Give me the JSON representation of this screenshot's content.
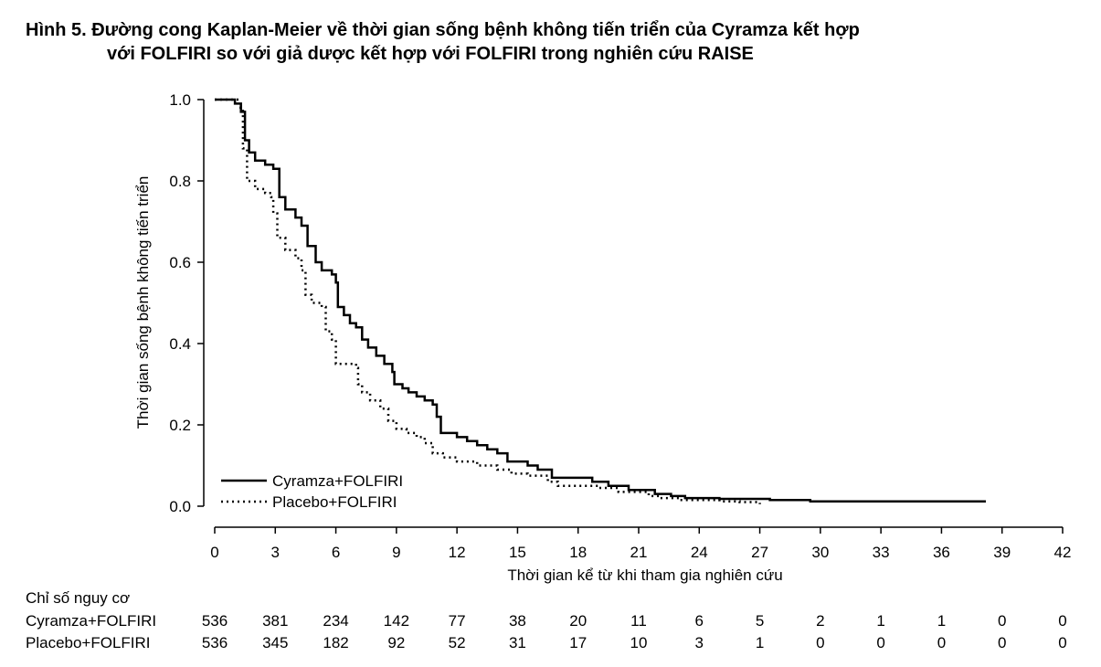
{
  "title": {
    "line1": "Hình 5. Đường cong Kaplan-Meier về thời gian sống bệnh không tiến triển của Cyramza kết hợp",
    "line2": "với FOLFIRI so với giả dược kết hợp với FOLFIRI trong nghiên cứu RAISE"
  },
  "chart_data": {
    "type": "line",
    "subtype": "kaplan-meier step curves",
    "xlabel": "Thời gian kể từ khi tham gia nghiên cứu",
    "ylabel": "Thời gian sống bệnh không tiến triển",
    "xlim": [
      0,
      42
    ],
    "ylim": [
      0,
      1.0
    ],
    "xticks": [
      0,
      3,
      6,
      9,
      12,
      15,
      18,
      21,
      24,
      27,
      30,
      33,
      36,
      39,
      42
    ],
    "yticks": [
      0.0,
      0.2,
      0.4,
      0.6,
      0.8,
      1.0
    ],
    "ytick_labels": [
      "0.0",
      "0.2",
      "0.4",
      "0.6",
      "0.8",
      "1.0"
    ],
    "grid": false,
    "legend_position": "bottom-left",
    "series": [
      {
        "name": "Cyramza+FOLFIRI",
        "style": "solid",
        "color": "#000000",
        "points": [
          [
            0,
            1.0
          ],
          [
            0.6,
            1.0
          ],
          [
            1.0,
            0.99
          ],
          [
            1.3,
            0.97
          ],
          [
            1.5,
            0.9
          ],
          [
            1.7,
            0.87
          ],
          [
            2.0,
            0.85
          ],
          [
            2.5,
            0.84
          ],
          [
            2.9,
            0.83
          ],
          [
            3.2,
            0.76
          ],
          [
            3.5,
            0.73
          ],
          [
            4.0,
            0.71
          ],
          [
            4.3,
            0.69
          ],
          [
            4.6,
            0.64
          ],
          [
            5.0,
            0.6
          ],
          [
            5.3,
            0.58
          ],
          [
            5.8,
            0.57
          ],
          [
            6.0,
            0.55
          ],
          [
            6.1,
            0.49
          ],
          [
            6.4,
            0.47
          ],
          [
            6.7,
            0.45
          ],
          [
            7.0,
            0.44
          ],
          [
            7.3,
            0.41
          ],
          [
            7.6,
            0.39
          ],
          [
            8.0,
            0.37
          ],
          [
            8.4,
            0.35
          ],
          [
            8.8,
            0.33
          ],
          [
            8.9,
            0.3
          ],
          [
            9.3,
            0.29
          ],
          [
            9.6,
            0.28
          ],
          [
            10.0,
            0.27
          ],
          [
            10.4,
            0.26
          ],
          [
            10.8,
            0.25
          ],
          [
            11.0,
            0.22
          ],
          [
            11.2,
            0.18
          ],
          [
            12.0,
            0.17
          ],
          [
            12.5,
            0.16
          ],
          [
            13.0,
            0.15
          ],
          [
            13.5,
            0.14
          ],
          [
            14.0,
            0.13
          ],
          [
            14.5,
            0.11
          ],
          [
            15.5,
            0.1
          ],
          [
            16.0,
            0.09
          ],
          [
            16.7,
            0.07
          ],
          [
            18.7,
            0.06
          ],
          [
            19.5,
            0.05
          ],
          [
            20.5,
            0.04
          ],
          [
            21.8,
            0.03
          ],
          [
            22.6,
            0.025
          ],
          [
            23.3,
            0.02
          ],
          [
            25.0,
            0.018
          ],
          [
            27.5,
            0.015
          ],
          [
            29.5,
            0.012
          ],
          [
            38.2,
            0.012
          ]
        ]
      },
      {
        "name": "Placebo+FOLFIRI",
        "style": "dotted",
        "color": "#000000",
        "points": [
          [
            0,
            1.0
          ],
          [
            0.8,
            1.0
          ],
          [
            1.2,
            0.98
          ],
          [
            1.4,
            0.88
          ],
          [
            1.6,
            0.8
          ],
          [
            2.0,
            0.78
          ],
          [
            2.5,
            0.77
          ],
          [
            2.8,
            0.76
          ],
          [
            2.9,
            0.72
          ],
          [
            3.1,
            0.66
          ],
          [
            3.5,
            0.63
          ],
          [
            4.0,
            0.61
          ],
          [
            4.3,
            0.58
          ],
          [
            4.5,
            0.52
          ],
          [
            4.8,
            0.5
          ],
          [
            5.3,
            0.49
          ],
          [
            5.5,
            0.43
          ],
          [
            5.8,
            0.41
          ],
          [
            6.0,
            0.35
          ],
          [
            7.0,
            0.34
          ],
          [
            7.1,
            0.3
          ],
          [
            7.3,
            0.28
          ],
          [
            7.7,
            0.26
          ],
          [
            8.2,
            0.24
          ],
          [
            8.6,
            0.21
          ],
          [
            9.0,
            0.19
          ],
          [
            9.5,
            0.18
          ],
          [
            10.0,
            0.17
          ],
          [
            10.4,
            0.155
          ],
          [
            10.8,
            0.13
          ],
          [
            11.3,
            0.12
          ],
          [
            12.0,
            0.11
          ],
          [
            13.0,
            0.1
          ],
          [
            14.0,
            0.09
          ],
          [
            14.7,
            0.08
          ],
          [
            15.5,
            0.075
          ],
          [
            16.5,
            0.06
          ],
          [
            17.0,
            0.05
          ],
          [
            19.0,
            0.045
          ],
          [
            20.0,
            0.035
          ],
          [
            21.5,
            0.025
          ],
          [
            22.0,
            0.02
          ],
          [
            23.0,
            0.015
          ],
          [
            25.0,
            0.012
          ],
          [
            26.0,
            0.01
          ],
          [
            27.0,
            0.005
          ]
        ]
      }
    ],
    "risk_table": {
      "header": "Chỉ số nguy cơ",
      "times": [
        0,
        3,
        6,
        9,
        12,
        15,
        18,
        21,
        24,
        27,
        30,
        33,
        36,
        39,
        42
      ],
      "rows": [
        {
          "name": "Cyramza+FOLFIRI",
          "values": [
            536,
            381,
            234,
            142,
            77,
            38,
            20,
            11,
            6,
            5,
            2,
            1,
            1,
            0,
            0
          ]
        },
        {
          "name": "Placebo+FOLFIRI",
          "values": [
            536,
            345,
            182,
            92,
            52,
            31,
            17,
            10,
            3,
            1,
            0,
            0,
            0,
            0,
            0
          ]
        }
      ]
    }
  }
}
